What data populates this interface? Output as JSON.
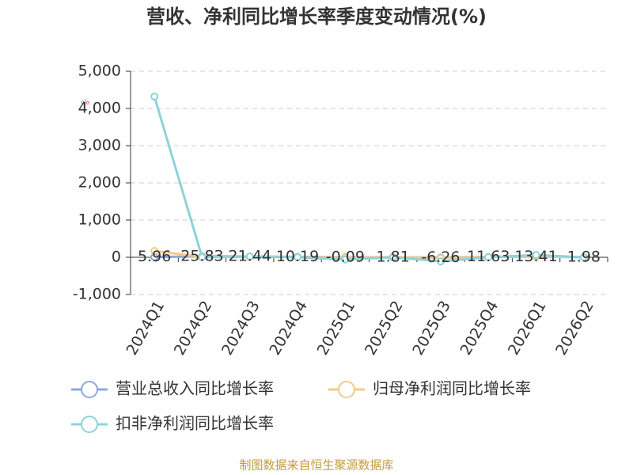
{
  "chart_data": {
    "type": "line",
    "title": "营收、净利同比增长率季度变动情况(%)",
    "y_label": "%",
    "source": "制图数据来自恒生聚源数据库",
    "categories": [
      "2024Q1",
      "2024Q2",
      "2024Q3",
      "2024Q4",
      "2025Q1",
      "2025Q2",
      "2025Q3",
      "2025Q4",
      "2026Q1",
      "2026Q2"
    ],
    "series": [
      {
        "name": "营业总收入同比增长率",
        "color": "#8fa9d6",
        "values": [
          5.96,
          25.83,
          21.44,
          10.19,
          -0.09,
          1.81,
          -6.26,
          11.63,
          13.41,
          1.98
        ]
      },
      {
        "name": "归母净利润同比增长率",
        "color": "#f5c98a",
        "values": [
          170,
          10,
          5,
          0,
          -10,
          5,
          -20,
          10,
          15,
          5
        ]
      },
      {
        "name": "扣非净利润同比增长率",
        "color": "#8ed3d8",
        "values": [
          4320,
          0,
          20,
          0,
          -60,
          0,
          -110,
          0,
          60,
          0
        ]
      }
    ],
    "ylim": [
      -1000,
      5000
    ],
    "yticks": [
      {
        "value": -1000,
        "label": "-1,000"
      },
      0,
      {
        "value": 1000,
        "label": "1,000"
      },
      {
        "value": 2000,
        "label": "2,000"
      },
      {
        "value": 3000,
        "label": "3,000"
      },
      {
        "value": 4000,
        "label": "4,000"
      },
      {
        "value": 5000,
        "label": "5,000"
      }
    ],
    "grid": true
  }
}
